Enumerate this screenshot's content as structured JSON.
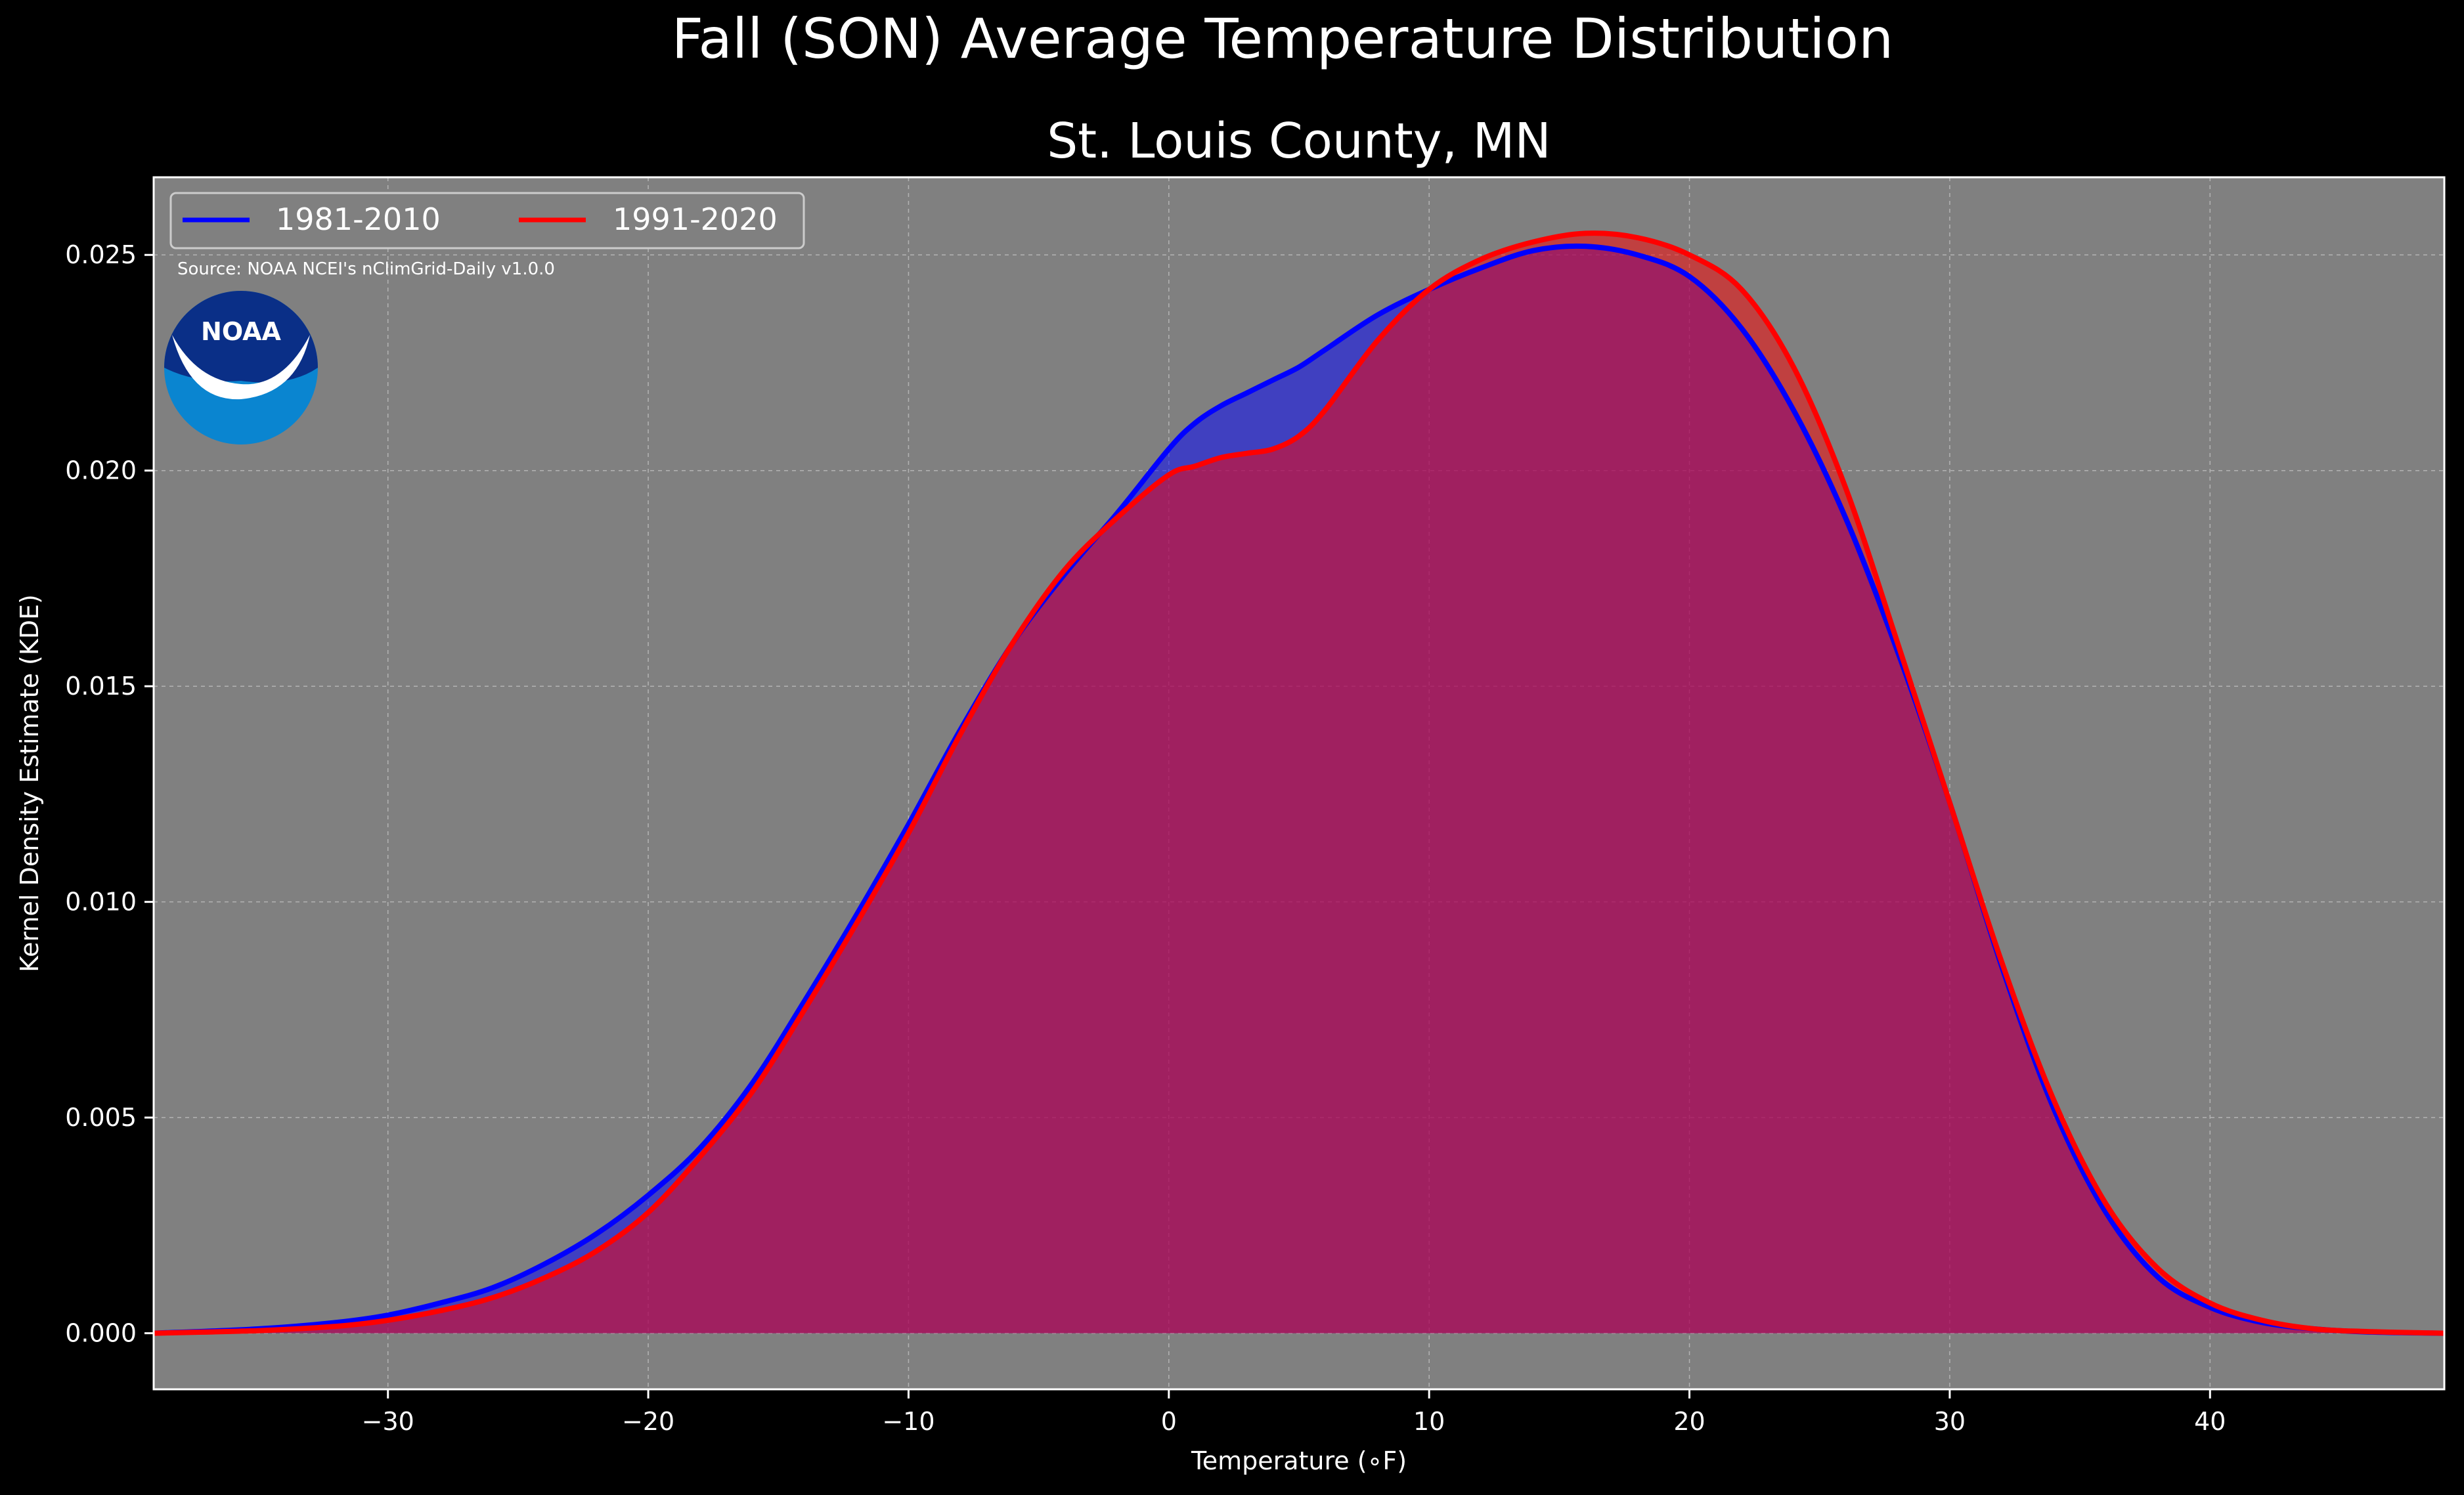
{
  "chart_data": {
    "type": "area",
    "suptitle": "Fall (SON) Average Temperature Distribution",
    "title": "St. Louis County, MN",
    "xlabel": "Temperature (∘F)",
    "ylabel": "Kernel Density Estimate (KDE)",
    "xlim": [
      -39,
      49
    ],
    "ylim": [
      -0.0013,
      0.0268
    ],
    "xticks": [
      -30,
      -20,
      -10,
      0,
      10,
      20,
      30,
      40
    ],
    "xtick_labels": [
      "−30",
      "−20",
      "−10",
      "0",
      "10",
      "20",
      "30",
      "40"
    ],
    "yticks": [
      0.0,
      0.005,
      0.01,
      0.015,
      0.02,
      0.025
    ],
    "ytick_labels": [
      "0.000",
      "0.005",
      "0.010",
      "0.015",
      "0.020",
      "0.025"
    ],
    "grid": true,
    "legend_position": "top-left",
    "source_text": "Source: NOAA NCEI's nClimGrid-Daily v1.0.0",
    "logo_text": "NOAA",
    "colors": {
      "background": "#000000",
      "axes_face": "#808080",
      "series_1981_2010": "#0000ff",
      "series_1991_2020": "#ff0000",
      "overlap_fill": "#a01e5c",
      "text": "#ffffff",
      "logo_dark": "#0a2f87",
      "logo_light": "#0a85d0"
    },
    "series": [
      {
        "name": "1981-2010",
        "color": "#0000ff",
        "x": [
          -39,
          -35,
          -32,
          -30,
          -28,
          -26,
          -24,
          -22,
          -20,
          -18,
          -16,
          -14,
          -12,
          -10,
          -8,
          -6,
          -4,
          -2,
          0,
          1,
          2,
          3,
          4,
          5,
          6,
          8,
          10,
          12,
          14,
          16,
          18,
          20,
          22,
          24,
          26,
          28,
          30,
          32,
          34,
          36,
          38,
          40,
          42,
          44,
          46,
          49
        ],
        "y": [
          0.0,
          0.0001,
          0.00025,
          0.00042,
          0.0007,
          0.00105,
          0.0016,
          0.0023,
          0.0032,
          0.0043,
          0.0058,
          0.0077,
          0.0097,
          0.0118,
          0.014,
          0.016,
          0.0176,
          0.019,
          0.0205,
          0.0211,
          0.0215,
          0.0218,
          0.0221,
          0.0224,
          0.0228,
          0.0236,
          0.0242,
          0.0247,
          0.0251,
          0.0252,
          0.025,
          0.0245,
          0.0233,
          0.0214,
          0.0189,
          0.0158,
          0.0123,
          0.0085,
          0.0052,
          0.0028,
          0.0013,
          0.0006,
          0.00025,
          0.0001,
          3e-05,
          0.0
        ]
      },
      {
        "name": "1991-2020",
        "color": "#ff0000",
        "x": [
          -39,
          -35,
          -32,
          -30,
          -28,
          -26,
          -24,
          -22,
          -20,
          -18,
          -16,
          -14,
          -12,
          -10,
          -8,
          -6,
          -4,
          -2,
          0,
          1,
          2,
          3,
          4,
          5,
          6,
          8,
          10,
          12,
          14,
          16,
          18,
          20,
          22,
          24,
          26,
          28,
          30,
          32,
          34,
          36,
          38,
          40,
          42,
          44,
          46,
          49
        ],
        "y": [
          0.0,
          6e-05,
          0.00016,
          0.0003,
          0.00052,
          0.00082,
          0.00128,
          0.0019,
          0.0028,
          0.0041,
          0.0056,
          0.0075,
          0.0095,
          0.0116,
          0.0139,
          0.016,
          0.0177,
          0.0189,
          0.0199,
          0.0201,
          0.0203,
          0.0204,
          0.0205,
          0.0208,
          0.0214,
          0.023,
          0.0242,
          0.0249,
          0.0253,
          0.0255,
          0.0254,
          0.025,
          0.0242,
          0.0224,
          0.0196,
          0.016,
          0.0123,
          0.0086,
          0.0054,
          0.003,
          0.0015,
          0.0007,
          0.0003,
          0.0001,
          4e-05,
          0.0
        ]
      }
    ]
  }
}
